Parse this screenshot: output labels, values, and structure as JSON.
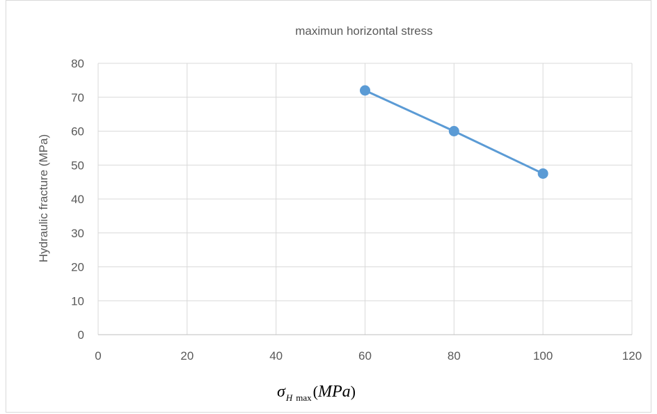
{
  "chart_data": {
    "type": "line",
    "title": "maximun horizontal stress",
    "ylabel": "Hydraulic fracture (MPa)",
    "xlabel": {
      "symbol": "σ",
      "subscript_italic": "H",
      "subscript": "max",
      "unit_open": "(",
      "unit": "MPa",
      "unit_close": ")"
    },
    "xlim": [
      0,
      120
    ],
    "ylim": [
      0,
      80
    ],
    "xticks": [
      "0",
      "20",
      "40",
      "60",
      "80",
      "100",
      "120"
    ],
    "yticks": [
      "0",
      "10",
      "20",
      "30",
      "40",
      "50",
      "60",
      "70",
      "80"
    ],
    "grid": true,
    "series": [
      {
        "color": "#5b9bd5",
        "x": [
          60,
          80,
          100
        ],
        "y": [
          72,
          60,
          47.5
        ]
      }
    ]
  }
}
